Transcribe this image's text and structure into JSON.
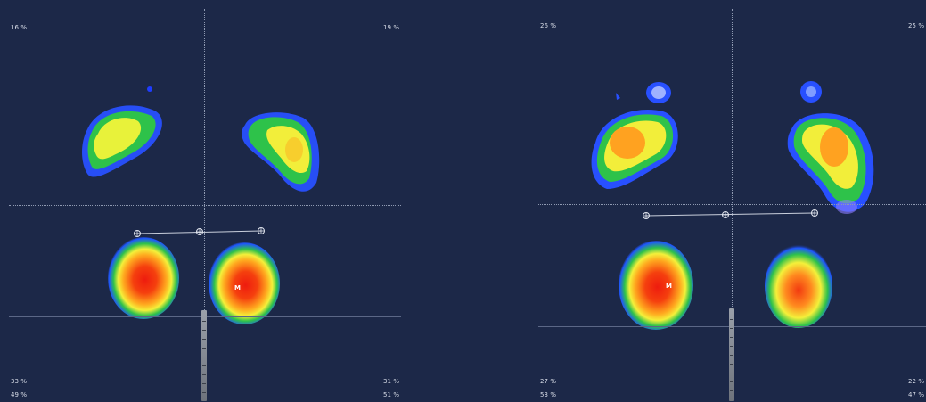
{
  "colors": {
    "background": "#1c2848",
    "heat_low": "#1f3dff",
    "heat_mid": "#2ec24a",
    "heat_yellow": "#f2f23a",
    "heat_orange": "#ff9a1f",
    "heat_high": "#ee1c0e"
  },
  "left_panel": {
    "top_left_pct": "16 %",
    "top_right_pct": "19 %",
    "bottom_left_pct": "33 %",
    "bottom_right_pct": "31 %",
    "total_left_pct": "49 %",
    "total_right_pct": "51 %",
    "marker_label": "M"
  },
  "right_panel": {
    "top_left_pct": "26 %",
    "top_right_pct": "25 %",
    "bottom_left_pct": "27 %",
    "bottom_right_pct": "22 %",
    "total_left_pct": "53 %",
    "total_right_pct": "47 %",
    "marker_label": "M"
  }
}
